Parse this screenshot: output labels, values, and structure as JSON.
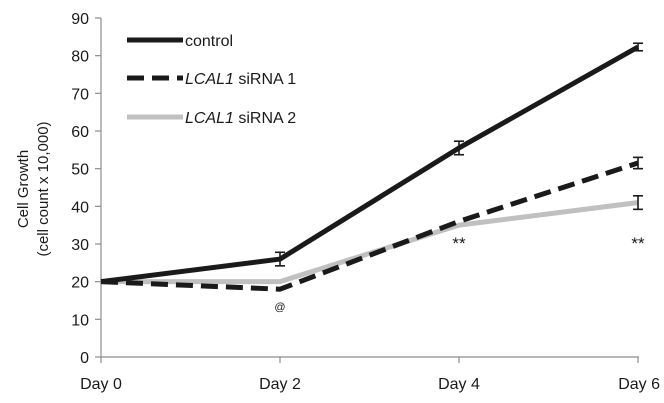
{
  "chart_data": {
    "type": "line",
    "categories": [
      "Day 0",
      "Day 2",
      "Day 4",
      "Day 6"
    ],
    "ylabel": "Cell Growth",
    "ylabel_sub": "(cell count x 10,000)",
    "ylim": [
      0,
      90
    ],
    "yticks": [
      0,
      10,
      20,
      30,
      40,
      50,
      60,
      70,
      80,
      90
    ],
    "grid": false,
    "legend_position": "top-left",
    "series": [
      {
        "name": "control",
        "name_italic": "",
        "name_rest": "control",
        "values": [
          20,
          26,
          55.5,
          82.3
        ],
        "errors": [
          0,
          1.8,
          1.8,
          1.0
        ],
        "color": "#1a1a1a",
        "style": "solid"
      },
      {
        "name": "LCAL1 siRNA 1",
        "name_italic": "LCAL1",
        "name_rest": " siRNA 1",
        "values": [
          20,
          18,
          36,
          51.5
        ],
        "errors": [
          0,
          0,
          0,
          1.5
        ],
        "color": "#1a1a1a",
        "style": "dashed"
      },
      {
        "name": "LCAL1 siRNA 2",
        "name_italic": "LCAL1",
        "name_rest": " siRNA 2",
        "values": [
          20,
          20,
          35,
          41
        ],
        "errors": [
          0,
          0,
          0,
          1.8
        ],
        "color": "#c0c0c0",
        "style": "solid"
      }
    ],
    "annotations": [
      {
        "text": "@",
        "category": "Day 2"
      },
      {
        "text": "**",
        "category": "Day 4"
      },
      {
        "text": "**",
        "category": "Day 6"
      }
    ]
  }
}
